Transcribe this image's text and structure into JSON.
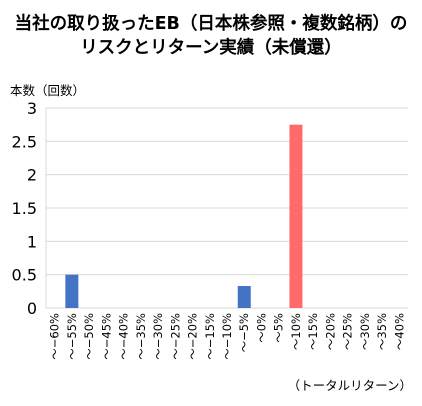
{
  "chart_data": {
    "type": "bar",
    "title_lines": [
      "当社の取り扱ったEB（日本株参照・複数銘柄）の",
      "リスクとリターン実績（未償還）"
    ],
    "ylabel": "本数（回数）",
    "xlabel": "（トータルリターン）",
    "ylim": [
      0,
      3
    ],
    "yticks": [
      "0",
      "0.5",
      "1",
      "1.5",
      "2",
      "2.5",
      "3"
    ],
    "grid": true,
    "categories": [
      "～−60%",
      "～−55%",
      "～−50%",
      "～−45%",
      "～−40%",
      "～−35%",
      "～−30%",
      "～−25%",
      "～−20%",
      "～−15%",
      "～−10%",
      "～−5%",
      "～0%",
      "～5%",
      "～10%",
      "～15%",
      "～20%",
      "～25%",
      "～30%",
      "～35%",
      "～40%"
    ],
    "values": [
      0,
      0.5,
      0,
      0,
      0,
      0,
      0,
      0,
      0,
      0,
      0,
      0.33,
      0,
      0,
      2.75,
      0,
      0,
      0,
      0,
      0,
      0
    ],
    "bar_colors": [
      "#4472C4",
      "#4472C4",
      "#4472C4",
      "#4472C4",
      "#4472C4",
      "#4472C4",
      "#4472C4",
      "#4472C4",
      "#4472C4",
      "#4472C4",
      "#4472C4",
      "#4472C4",
      "#4472C4",
      "#4472C4",
      "#FF6B6B",
      "#FF6B6B",
      "#FF6B6B",
      "#FF6B6B",
      "#FF6B6B",
      "#FF6B6B",
      "#FF6B6B"
    ],
    "gridline_color": "#D9D9D9"
  }
}
